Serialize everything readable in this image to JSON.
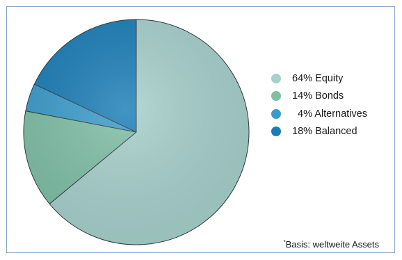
{
  "chart_data": {
    "type": "pie",
    "slices": [
      {
        "label": "64% Equity",
        "value": 64,
        "color": "#a7d0cc"
      },
      {
        "label": "14% Bonds",
        "value": 14,
        "color": "#7fbfa6"
      },
      {
        "label": "  4% Alternatives",
        "value": 4,
        "color": "#3b9ccc"
      },
      {
        "label": "18% Balanced",
        "value": 18,
        "color": "#1a7db7"
      }
    ],
    "legend_position": "right",
    "start": "top",
    "direction": "clockwise"
  },
  "footnote": {
    "marker": "*",
    "text": "Basis: weltweite Assets"
  }
}
